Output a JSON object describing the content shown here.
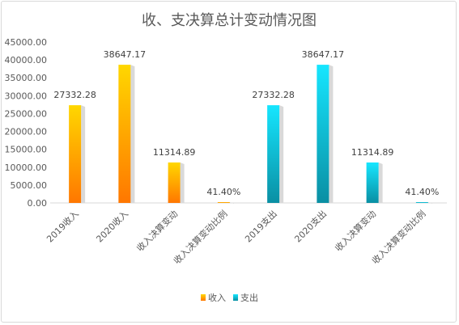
{
  "chart_data": {
    "type": "bar",
    "title": "收、支决算总计变动情况图",
    "categories": [
      "2019收入",
      "2020收入",
      "收入决算变动",
      "收入决算变动比例",
      "2019支出",
      "2020支出",
      "收入决算变动",
      "收入决算变动比例"
    ],
    "values": [
      27332.28,
      38647.17,
      11314.89,
      41.4,
      27332.28,
      38647.17,
      11314.89,
      41.4
    ],
    "data_labels": [
      "27332.28",
      "38647.17",
      "11314.89",
      "41.40%",
      "27332.28",
      "38647.17",
      "11314.89",
      "41.40%"
    ],
    "bar_series": [
      0,
      0,
      0,
      0,
      1,
      1,
      1,
      1
    ],
    "series": [
      {
        "name": "收入",
        "color_top": "#ffd700",
        "color_bottom": "#ff7700"
      },
      {
        "name": "支出",
        "color_top": "#16e6ff",
        "color_bottom": "#0a8fa3"
      }
    ],
    "ylim": [
      0,
      45000
    ],
    "ytick_step": 5000,
    "ytick_labels": [
      "0.00",
      "5000.00",
      "10000.00",
      "15000.00",
      "20000.00",
      "25000.00",
      "30000.00",
      "35000.00",
      "40000.00",
      "45000.00"
    ],
    "grid": false,
    "legend_position": "bottom",
    "xlabel": "",
    "ylabel": ""
  }
}
